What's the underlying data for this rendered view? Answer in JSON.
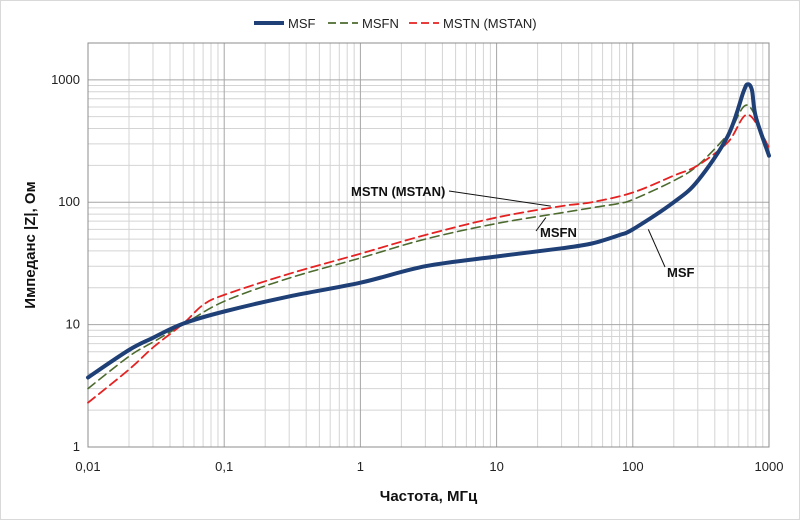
{
  "chart_data": {
    "type": "line",
    "xlabel": "Частота, МГц",
    "ylabel": "Импеданс  |Z|, Ом",
    "xscale": "log",
    "yscale": "log",
    "xlim": [
      0.01,
      1000
    ],
    "ylim": [
      1,
      2000
    ],
    "x_ticks": [
      {
        "value": 0.01,
        "label": "0,01"
      },
      {
        "value": 0.1,
        "label": "0,1"
      },
      {
        "value": 1,
        "label": "1"
      },
      {
        "value": 10,
        "label": "10"
      },
      {
        "value": 100,
        "label": "100"
      },
      {
        "value": 1000,
        "label": "1000"
      }
    ],
    "y_ticks": [
      {
        "value": 1,
        "label": "1"
      },
      {
        "value": 10,
        "label": "10"
      },
      {
        "value": 100,
        "label": "100"
      },
      {
        "value": 1000,
        "label": "1000"
      }
    ],
    "grid": "major and minor",
    "legend_position": "top",
    "series": [
      {
        "name": "MSF",
        "color": "#1f3f77",
        "style": "solid",
        "x": [
          0.01,
          0.02,
          0.03,
          0.05,
          0.1,
          0.3,
          1,
          3,
          10,
          30,
          50,
          80,
          100,
          200,
          300,
          500,
          650,
          700,
          750,
          800,
          1000
        ],
        "y": [
          3.7,
          6.2,
          7.8,
          10.2,
          12.8,
          17,
          22,
          30,
          36,
          42,
          46,
          54,
          60,
          100,
          150,
          350,
          800,
          920,
          820,
          500,
          240
        ]
      },
      {
        "name": "MSFN",
        "color": "#4d6b2f",
        "style": "dashed",
        "x": [
          0.01,
          0.02,
          0.03,
          0.05,
          0.1,
          0.3,
          1,
          3,
          10,
          30,
          50,
          80,
          100,
          200,
          300,
          500,
          700,
          1000
        ],
        "y": [
          3.0,
          5.5,
          7.2,
          10.0,
          15.5,
          24,
          35,
          50,
          67,
          82,
          90,
          98,
          105,
          150,
          200,
          360,
          620,
          260
        ]
      },
      {
        "name": "MSTN (MSTAN)",
        "color": "#e52222",
        "style": "dashed",
        "x": [
          0.01,
          0.02,
          0.03,
          0.05,
          0.07,
          0.1,
          0.3,
          1,
          3,
          10,
          30,
          50,
          100,
          200,
          300,
          500,
          700,
          1000
        ],
        "y": [
          2.3,
          4.3,
          6.5,
          10.2,
          14.5,
          17.5,
          26,
          38,
          54,
          75,
          93,
          100,
          120,
          165,
          200,
          310,
          520,
          280
        ]
      }
    ],
    "annotations": [
      {
        "text": "MSTN (MSTAN)",
        "x": 25,
        "y": 93
      },
      {
        "text": "MSFN",
        "x": 23,
        "y": 75
      },
      {
        "text": "MSF",
        "x": 130,
        "y": 60
      }
    ]
  }
}
